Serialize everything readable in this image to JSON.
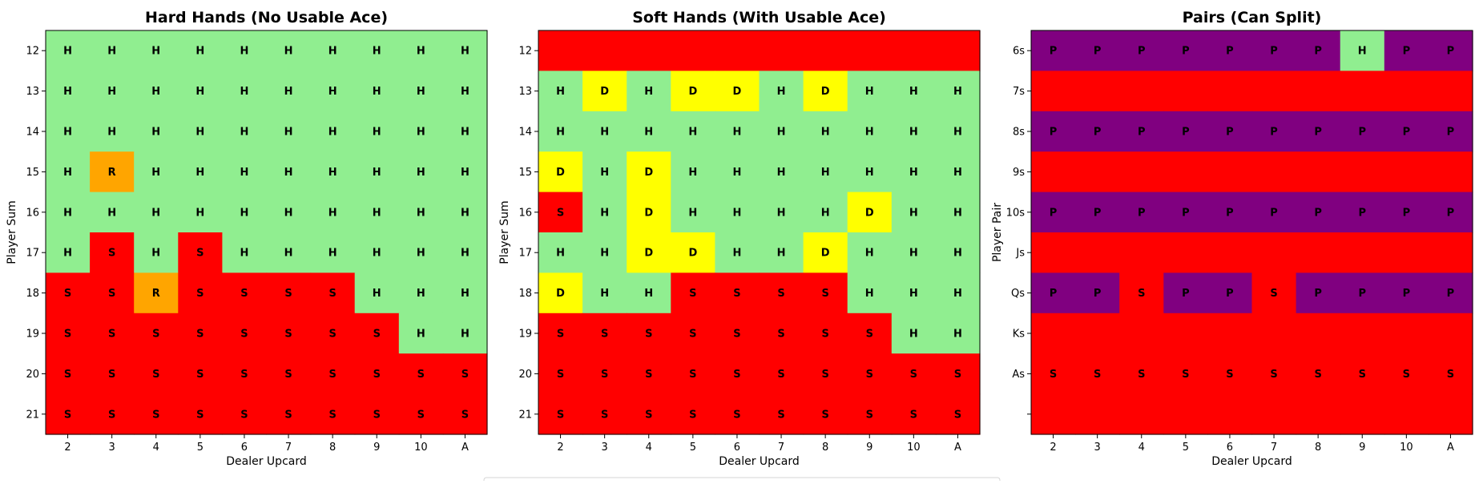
{
  "colors": {
    "H": "#90ee90",
    "S": "#ff0000",
    "D": "#ffff00",
    "R": "#ffa500",
    "P": "#800080"
  },
  "chart_data": [
    {
      "type": "heatmap",
      "title": "Hard Hands (No Usable Ace)",
      "xlabel": "Dealer Upcard",
      "ylabel": "Player Sum",
      "x_categories": [
        "2",
        "3",
        "4",
        "5",
        "6",
        "7",
        "8",
        "9",
        "10",
        "A"
      ],
      "y_categories": [
        "12",
        "13",
        "14",
        "15",
        "16",
        "17",
        "18",
        "19",
        "20",
        "21"
      ],
      "cells": [
        [
          "H",
          "H",
          "H",
          "H",
          "H",
          "H",
          "H",
          "H",
          "H",
          "H"
        ],
        [
          "H",
          "H",
          "H",
          "H",
          "H",
          "H",
          "H",
          "H",
          "H",
          "H"
        ],
        [
          "H",
          "H",
          "H",
          "H",
          "H",
          "H",
          "H",
          "H",
          "H",
          "H"
        ],
        [
          "H",
          "R",
          "H",
          "H",
          "H",
          "H",
          "H",
          "H",
          "H",
          "H"
        ],
        [
          "H",
          "H",
          "H",
          "H",
          "H",
          "H",
          "H",
          "H",
          "H",
          "H"
        ],
        [
          "H",
          "S",
          "H",
          "S",
          "H",
          "H",
          "H",
          "H",
          "H",
          "H"
        ],
        [
          "S",
          "S",
          "R",
          "S",
          "S",
          "S",
          "S",
          "H",
          "H",
          "H"
        ],
        [
          "S",
          "S",
          "S",
          "S",
          "S",
          "S",
          "S",
          "S",
          "H",
          "H"
        ],
        [
          "S",
          "S",
          "S",
          "S",
          "S",
          "S",
          "S",
          "S",
          "S",
          "S"
        ],
        [
          "S",
          "S",
          "S",
          "S",
          "S",
          "S",
          "S",
          "S",
          "S",
          "S"
        ]
      ],
      "labels_shown": [
        true,
        true,
        true,
        true,
        true,
        true,
        true,
        true,
        true,
        true
      ]
    },
    {
      "type": "heatmap",
      "title": "Soft Hands (With Usable Ace)",
      "xlabel": "Dealer Upcard",
      "ylabel": "Player Sum",
      "x_categories": [
        "2",
        "3",
        "4",
        "5",
        "6",
        "7",
        "8",
        "9",
        "10",
        "A"
      ],
      "y_categories": [
        "12",
        "13",
        "14",
        "15",
        "16",
        "17",
        "18",
        "19",
        "20",
        "21"
      ],
      "cells": [
        [
          "S",
          "S",
          "S",
          "S",
          "S",
          "S",
          "S",
          "S",
          "S",
          "S"
        ],
        [
          "H",
          "D",
          "H",
          "D",
          "D",
          "H",
          "D",
          "H",
          "H",
          "H"
        ],
        [
          "H",
          "H",
          "H",
          "H",
          "H",
          "H",
          "H",
          "H",
          "H",
          "H"
        ],
        [
          "D",
          "H",
          "D",
          "H",
          "H",
          "H",
          "H",
          "H",
          "H",
          "H"
        ],
        [
          "S",
          "H",
          "D",
          "H",
          "H",
          "H",
          "H",
          "D",
          "H",
          "H"
        ],
        [
          "H",
          "H",
          "D",
          "D",
          "H",
          "H",
          "D",
          "H",
          "H",
          "H"
        ],
        [
          "D",
          "H",
          "H",
          "S",
          "S",
          "S",
          "S",
          "H",
          "H",
          "H"
        ],
        [
          "S",
          "S",
          "S",
          "S",
          "S",
          "S",
          "S",
          "S",
          "H",
          "H"
        ],
        [
          "S",
          "S",
          "S",
          "S",
          "S",
          "S",
          "S",
          "S",
          "S",
          "S"
        ],
        [
          "S",
          "S",
          "S",
          "S",
          "S",
          "S",
          "S",
          "S",
          "S",
          "S"
        ]
      ],
      "labels_shown": [
        false,
        true,
        true,
        true,
        true,
        true,
        true,
        true,
        true,
        true
      ]
    },
    {
      "type": "heatmap",
      "title": "Pairs (Can Split)",
      "xlabel": "Dealer Upcard",
      "ylabel": "Player Pair",
      "x_categories": [
        "2",
        "3",
        "4",
        "5",
        "6",
        "7",
        "8",
        "9",
        "10",
        "A"
      ],
      "y_categories": [
        "6s",
        "7s",
        "8s",
        "9s",
        "10s",
        "Js",
        "Qs",
        "Ks",
        "As",
        ""
      ],
      "cells": [
        [
          "P",
          "P",
          "P",
          "P",
          "P",
          "P",
          "P",
          "H",
          "P",
          "P"
        ],
        [
          "S",
          "S",
          "S",
          "S",
          "S",
          "S",
          "S",
          "S",
          "S",
          "S"
        ],
        [
          "P",
          "P",
          "P",
          "P",
          "P",
          "P",
          "P",
          "P",
          "P",
          "P"
        ],
        [
          "S",
          "S",
          "S",
          "S",
          "S",
          "S",
          "S",
          "S",
          "S",
          "S"
        ],
        [
          "P",
          "P",
          "P",
          "P",
          "P",
          "P",
          "P",
          "P",
          "P",
          "P"
        ],
        [
          "S",
          "S",
          "S",
          "S",
          "S",
          "S",
          "S",
          "S",
          "S",
          "S"
        ],
        [
          "P",
          "P",
          "S",
          "P",
          "P",
          "S",
          "P",
          "P",
          "P",
          "P"
        ],
        [
          "S",
          "S",
          "S",
          "S",
          "S",
          "S",
          "S",
          "S",
          "S",
          "S"
        ],
        [
          "S",
          "S",
          "S",
          "S",
          "S",
          "S",
          "S",
          "S",
          "S",
          "S"
        ],
        [
          "S",
          "S",
          "S",
          "S",
          "S",
          "S",
          "S",
          "S",
          "S",
          "S"
        ]
      ],
      "labels_shown": [
        true,
        false,
        true,
        false,
        true,
        false,
        true,
        false,
        true,
        false
      ]
    }
  ]
}
